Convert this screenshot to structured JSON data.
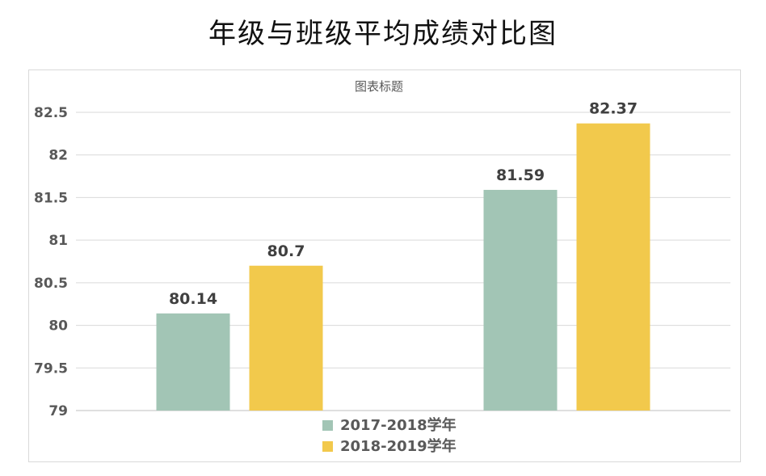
{
  "page": {
    "title": "年级与班级平均成绩对比图"
  },
  "chart_data": {
    "type": "bar",
    "title": "图表标题",
    "categories": [
      "",
      ""
    ],
    "series": [
      {
        "name": "2017-2018学年",
        "values": [
          80.14,
          81.59
        ],
        "color": "#a2c5b5"
      },
      {
        "name": "2018-2019学年",
        "values": [
          80.7,
          82.37
        ],
        "color": "#f2c94c"
      }
    ],
    "data_labels": [
      [
        "80.14",
        "81.59"
      ],
      [
        "80.7",
        "82.37"
      ]
    ],
    "y_ticks": [
      "79",
      "79.5",
      "80",
      "80.5",
      "81",
      "81.5",
      "82",
      "82.5"
    ],
    "ylim": [
      79,
      82.5
    ],
    "grid": true,
    "legend_position": "bottom"
  }
}
